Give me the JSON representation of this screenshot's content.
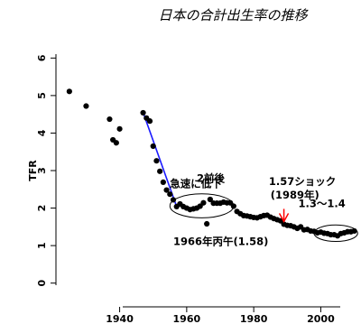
{
  "chart_data": {
    "type": "scatter",
    "title": "日本の合計出生率の推移",
    "ylabel": "TFR",
    "xlabel": "",
    "xlim": [
      1921,
      2012
    ],
    "ylim": [
      -0.2,
      6.2
    ],
    "x_ticks": [
      1940,
      1960,
      1980,
      2000
    ],
    "y_ticks": [
      0,
      1,
      2,
      3,
      4,
      5,
      6
    ],
    "grid": false,
    "series": [
      {
        "points": [
          [
            1925,
            5.11
          ],
          [
            1930,
            4.72
          ],
          [
            1937,
            4.37
          ],
          [
            1938,
            3.82
          ],
          [
            1939,
            3.74
          ],
          [
            1940,
            4.11
          ],
          [
            1947,
            4.54
          ],
          [
            1948,
            4.4
          ],
          [
            1949,
            4.32
          ],
          [
            1950,
            3.65
          ],
          [
            1951,
            3.26
          ],
          [
            1952,
            2.98
          ],
          [
            1953,
            2.69
          ],
          [
            1954,
            2.48
          ],
          [
            1955,
            2.37
          ],
          [
            1956,
            2.22
          ],
          [
            1957,
            2.04
          ],
          [
            1958,
            2.11
          ],
          [
            1959,
            2.04
          ],
          [
            1960,
            2.0
          ],
          [
            1961,
            1.96
          ],
          [
            1962,
            1.98
          ],
          [
            1963,
            2.0
          ],
          [
            1964,
            2.05
          ],
          [
            1965,
            2.14
          ],
          [
            1966,
            1.58
          ],
          [
            1967,
            2.23
          ],
          [
            1968,
            2.13
          ],
          [
            1969,
            2.13
          ],
          [
            1970,
            2.13
          ],
          [
            1971,
            2.16
          ],
          [
            1972,
            2.14
          ],
          [
            1973,
            2.14
          ],
          [
            1974,
            2.05
          ],
          [
            1975,
            1.91
          ],
          [
            1976,
            1.85
          ],
          [
            1977,
            1.8
          ],
          [
            1978,
            1.79
          ],
          [
            1979,
            1.77
          ],
          [
            1980,
            1.75
          ],
          [
            1981,
            1.74
          ],
          [
            1982,
            1.77
          ],
          [
            1983,
            1.8
          ],
          [
            1984,
            1.81
          ],
          [
            1985,
            1.76
          ],
          [
            1986,
            1.72
          ],
          [
            1987,
            1.69
          ],
          [
            1988,
            1.66
          ],
          [
            1989,
            1.57
          ],
          [
            1990,
            1.54
          ],
          [
            1991,
            1.53
          ],
          [
            1992,
            1.5
          ],
          [
            1993,
            1.46
          ],
          [
            1994,
            1.5
          ],
          [
            1995,
            1.42
          ],
          [
            1996,
            1.43
          ],
          [
            1997,
            1.39
          ],
          [
            1998,
            1.38
          ],
          [
            1999,
            1.34
          ],
          [
            2000,
            1.36
          ],
          [
            2001,
            1.33
          ],
          [
            2002,
            1.32
          ],
          [
            2003,
            1.29
          ],
          [
            2004,
            1.29
          ],
          [
            2005,
            1.26
          ],
          [
            2006,
            1.32
          ],
          [
            2007,
            1.34
          ],
          [
            2008,
            1.37
          ],
          [
            2009,
            1.37
          ],
          [
            2010,
            1.39
          ]
        ]
      }
    ],
    "trend_line": {
      "color": "#1a1aff",
      "from": [
        1947,
        4.55
      ],
      "to": [
        1957,
        2.04
      ]
    },
    "annotations": {
      "rapid_decline": {
        "text": "急速に低下",
        "x": 1955,
        "y": 2.55
      },
      "around_two": {
        "text": "2前後",
        "x": 1963,
        "y": 2.7
      },
      "shock_line1": {
        "text": "1.57ショック",
        "x": 1984.5,
        "y": 2.62
      },
      "shock_line2": {
        "text": "(1989年)",
        "x": 1985,
        "y": 2.25
      },
      "hinoeuma": {
        "text": "1966年丙午(1.58)",
        "x": 1956,
        "y": 1.02
      },
      "low_range": {
        "text": "1.3～1.4",
        "x": 1993.3,
        "y": 2.03
      }
    },
    "ellipses": [
      {
        "cx": 1964.5,
        "cy": 2.06,
        "rx": 9.5,
        "ry": 0.32
      },
      {
        "cx": 2004.5,
        "cy": 1.33,
        "rx": 6.5,
        "ry": 0.22
      }
    ],
    "arrow": {
      "color": "#ff0000",
      "x": 1989,
      "y": 1.57
    }
  }
}
